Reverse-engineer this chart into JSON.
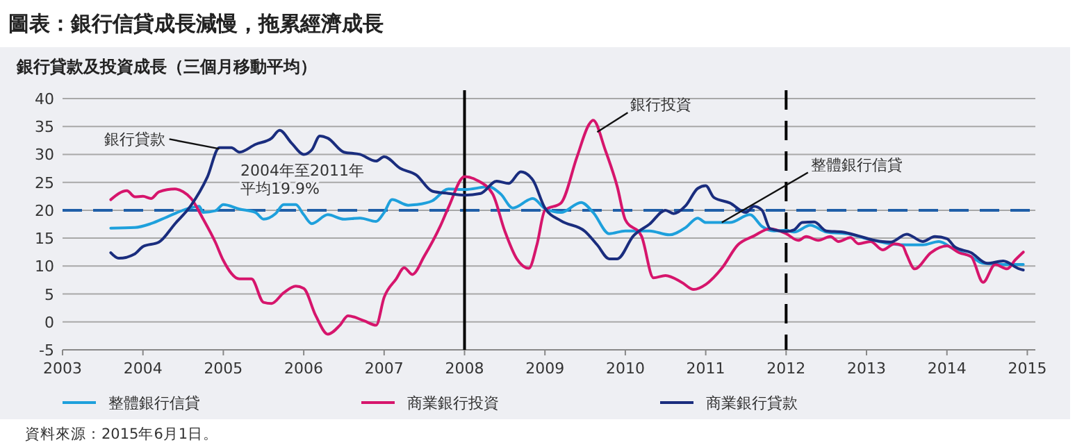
{
  "chart_data": {
    "type": "line",
    "title": "圖表：銀行信貸成長減慢，拖累經濟成長",
    "subtitle": "銀行貸款及投資成長（三個月移動平均）",
    "xlim": [
      2003,
      2015.1
    ],
    "xticks": [
      2003,
      2004,
      2005,
      2006,
      2007,
      2008,
      2009,
      2010,
      2011,
      2012,
      2013,
      2014,
      2015
    ],
    "ylim": [
      -5,
      40
    ],
    "yticks": [
      -5,
      0,
      5,
      10,
      15,
      20,
      25,
      30,
      35,
      40
    ],
    "grid": "y",
    "legend": "bottom",
    "line_style": "solid",
    "marker": "none",
    "series": [
      {
        "name": "整體銀行信貸",
        "color": "#1ea0dc",
        "x": [
          2003.6,
          2003.9,
          2004.1,
          2004.3,
          2004.5,
          2004.7,
          2004.75,
          2004.9,
          2005.0,
          2005.2,
          2005.4,
          2005.5,
          2005.65,
          2005.75,
          2005.9,
          2006.0,
          2006.1,
          2006.3,
          2006.5,
          2006.7,
          2006.9,
          2007.0,
          2007.1,
          2007.3,
          2007.4,
          2007.6,
          2007.8,
          2008.0,
          2008.3,
          2008.45,
          2008.6,
          2008.85,
          2009.0,
          2009.2,
          2009.45,
          2009.6,
          2009.8,
          2010.0,
          2010.3,
          2010.55,
          2010.75,
          2010.9,
          2011.0,
          2011.3,
          2011.55,
          2011.7,
          2011.85,
          2012.0,
          2012.1,
          2012.3,
          2012.5,
          2012.8,
          2013.0,
          2013.3,
          2013.5,
          2013.7,
          2013.9,
          2014.1,
          2014.3,
          2014.45,
          2014.7,
          2014.95
        ],
        "values": [
          16.8,
          16.9,
          17.6,
          18.8,
          20,
          20.7,
          19.6,
          19.9,
          21,
          20.2,
          19.6,
          18.4,
          19.4,
          21,
          21,
          19.2,
          17.6,
          19.2,
          18.4,
          18.6,
          18,
          19.6,
          21.9,
          20.9,
          21,
          21.7,
          23.8,
          23.7,
          24.2,
          22.9,
          20.4,
          22.1,
          20.3,
          19.6,
          21.4,
          19.6,
          15.8,
          16.3,
          16.3,
          15.6,
          16.9,
          18.6,
          17.8,
          17.8,
          19.2,
          17.1,
          16.3,
          16.4,
          16.1,
          17.3,
          16.1,
          15.7,
          14.9,
          14,
          13.8,
          13.8,
          14.4,
          12.9,
          11.7,
          10.5,
          10.3,
          10.3
        ]
      },
      {
        "name": "商業銀行投資",
        "color": "#d6156c",
        "x": [
          2003.6,
          2003.8,
          2003.9,
          2004.0,
          2004.1,
          2004.2,
          2004.4,
          2004.5,
          2004.6,
          2004.75,
          2004.9,
          2005.0,
          2005.2,
          2005.35,
          2005.5,
          2005.6,
          2005.75,
          2005.9,
          2006.0,
          2006.15,
          2006.3,
          2006.45,
          2006.55,
          2006.75,
          2006.9,
          2007.0,
          2007.15,
          2007.25,
          2007.35,
          2007.5,
          2007.7,
          2007.8,
          2008.0,
          2008.15,
          2008.35,
          2008.5,
          2008.65,
          2008.8,
          2008.9,
          2009.0,
          2009.2,
          2009.4,
          2009.55,
          2009.6,
          2009.75,
          2009.9,
          2010.0,
          2010.2,
          2010.35,
          2010.5,
          2010.7,
          2010.85,
          2011.0,
          2011.2,
          2011.4,
          2011.6,
          2011.8,
          2012.0,
          2012.15,
          2012.25,
          2012.4,
          2012.55,
          2012.65,
          2012.8,
          2012.9,
          2013.05,
          2013.2,
          2013.35,
          2013.45,
          2013.5,
          2013.6,
          2013.8,
          2014.0,
          2014.15,
          2014.3,
          2014.45,
          2014.6,
          2014.75,
          2014.85,
          2014.95
        ],
        "values": [
          21.9,
          23.5,
          22.4,
          22.5,
          22.1,
          23.3,
          23.8,
          23.3,
          22.1,
          18.4,
          14.3,
          11,
          7.7,
          7.7,
          3.5,
          3.3,
          5.2,
          6.4,
          6,
          1.1,
          -2.2,
          -0.6,
          1.1,
          0.2,
          -0.6,
          4.4,
          7.7,
          9.7,
          8.5,
          11.8,
          17.2,
          20.5,
          26,
          25.4,
          22.9,
          16.3,
          11.3,
          9.6,
          13.8,
          20,
          21.3,
          29.6,
          35.4,
          36.1,
          30.8,
          24.2,
          18.3,
          15.4,
          7.9,
          8.3,
          7.1,
          5.8,
          6.7,
          9.6,
          13.8,
          15.4,
          16.7,
          15.8,
          14.6,
          15.3,
          14.6,
          15.3,
          14.4,
          15.1,
          14,
          14.4,
          12.9,
          14,
          13.6,
          12,
          9.5,
          12.4,
          13.6,
          12.4,
          11.7,
          7.1,
          10.3,
          9.5,
          11.1,
          12.5
        ]
      },
      {
        "name": "商業銀行貸款",
        "color": "#1a2d7e",
        "x": [
          2003.6,
          2003.7,
          2003.9,
          2004.0,
          2004.2,
          2004.4,
          2004.6,
          2004.8,
          2004.95,
          2005.1,
          2005.2,
          2005.4,
          2005.6,
          2005.7,
          2005.85,
          2006.0,
          2006.1,
          2006.2,
          2006.3,
          2006.5,
          2006.7,
          2006.9,
          2007.0,
          2007.2,
          2007.4,
          2007.6,
          2007.8,
          2008.0,
          2008.2,
          2008.4,
          2008.55,
          2008.7,
          2008.85,
          2009.0,
          2009.2,
          2009.5,
          2009.65,
          2009.8,
          2009.9,
          2010.1,
          2010.3,
          2010.5,
          2010.6,
          2010.75,
          2010.9,
          2011.0,
          2011.1,
          2011.3,
          2011.5,
          2011.6,
          2011.7,
          2011.8,
          2012.0,
          2012.1,
          2012.2,
          2012.35,
          2012.5,
          2012.7,
          2012.9,
          2013.1,
          2013.3,
          2013.5,
          2013.7,
          2013.85,
          2014.0,
          2014.1,
          2014.3,
          2014.5,
          2014.7,
          2014.9,
          2014.95
        ],
        "values": [
          12.4,
          11.4,
          12.2,
          13.5,
          14.3,
          17.6,
          20.9,
          25.9,
          31.2,
          31.2,
          30.4,
          31.8,
          32.9,
          34.3,
          32,
          30,
          30.8,
          33.3,
          32.9,
          30.4,
          30,
          28.8,
          29.6,
          27.5,
          26.3,
          23.4,
          23,
          22.7,
          23,
          25.2,
          24.8,
          26.9,
          25.4,
          20.4,
          18.1,
          16.2,
          13.8,
          11.3,
          11.3,
          15.4,
          17.5,
          20,
          19.4,
          20.8,
          23.9,
          24.4,
          22.3,
          21.3,
          19.6,
          20.7,
          20,
          16.7,
          16.2,
          16.5,
          17.8,
          17.9,
          16.3,
          16.1,
          15.4,
          14.6,
          14.3,
          15.7,
          14.4,
          15.3,
          14.9,
          13.4,
          12.4,
          10.5,
          10.9,
          9.5,
          9.3
        ]
      }
    ],
    "ref_lines": [
      {
        "axis": "y",
        "value": 20,
        "label": "2004年至2011年平均19.9%",
        "color": "#1f5fa8",
        "line_style": "dashed"
      },
      {
        "axis": "x",
        "value": 2008,
        "color": "#000000",
        "line_style": "solid"
      },
      {
        "axis": "x",
        "value": 2012,
        "color": "#000000",
        "line_style": "dashed"
      }
    ],
    "annotations": [
      {
        "text": "銀行貸款",
        "x": 2004.95,
        "y": 31
      },
      {
        "text": "銀行投資",
        "x": 2009.65,
        "y": 34
      },
      {
        "text": "整體銀行信貸",
        "x": 2011.2,
        "y": 17.8
      },
      "資料來源：2015年6月1日。"
    ]
  }
}
